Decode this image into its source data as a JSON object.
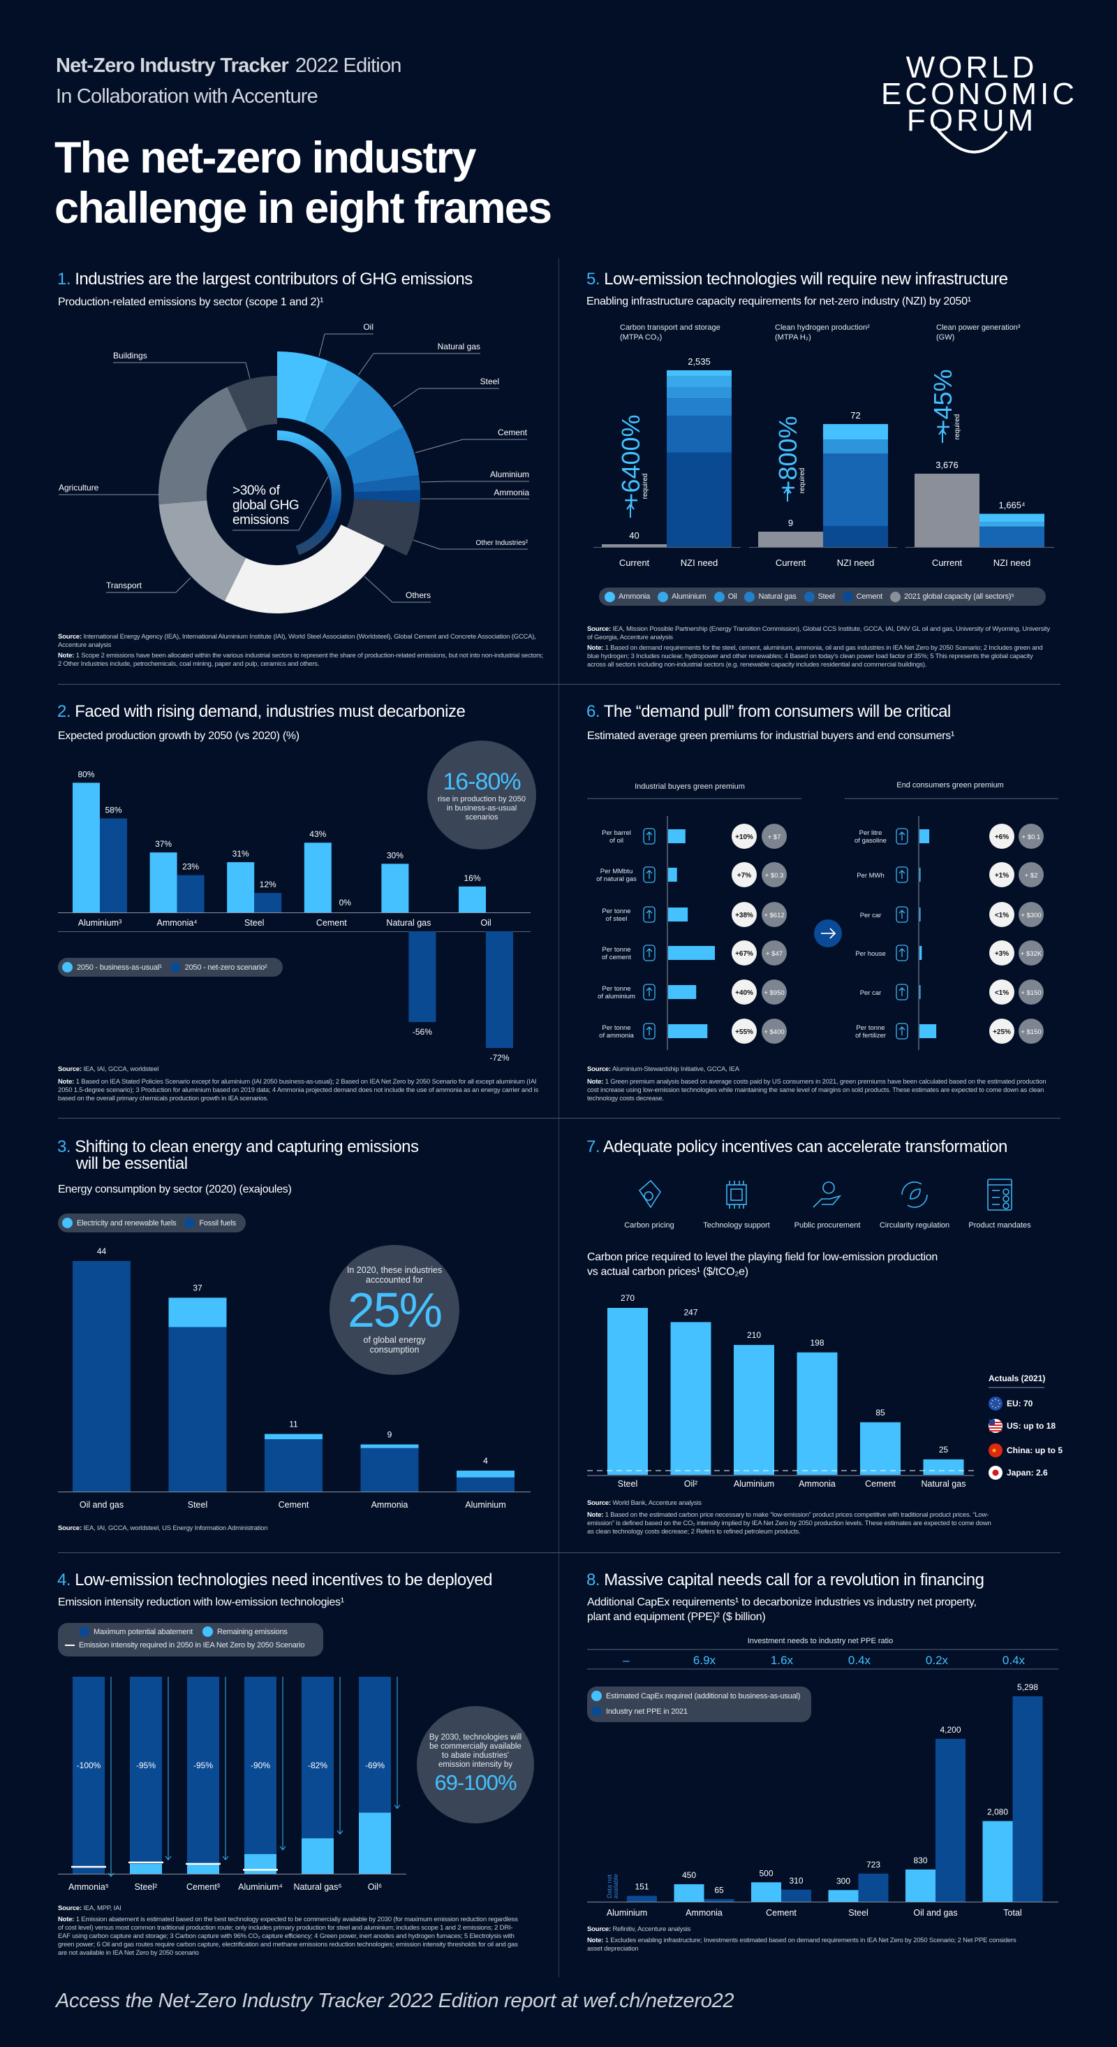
{
  "header": {
    "tracker": "Net-Zero Industry Tracker",
    "edition": "2022 Edition",
    "collab": "In Collaboration with Accenture",
    "title_line1": "The net-zero industry",
    "title_line2": "challenge in eight frames",
    "logo": [
      "WORLD",
      "ECONOMIC",
      "FORUM"
    ]
  },
  "colors": {
    "background": "#020f27",
    "accent": "#3fb6f5",
    "light_blue": "#45c1ff",
    "dark_blue": "#0a4a93",
    "bubble": "#3a4557",
    "current_gray": "#8a8f99"
  },
  "sections": {
    "s1": {
      "num": "1.",
      "title": "Industries are the largest contributors of GHG emissions",
      "subtitle": "Production-related emissions by sector (scope 1 and 2)¹",
      "center_label": [
        ">30% of",
        "global GHG",
        "emissions"
      ],
      "source_label": "Source:",
      "source": "International Energy Agency (IEA), International Aluminium Institute (IAI), World Steel Association (Worldsteel), Global Cement and Concrete Association (GCCA), Accenture analysis",
      "note_label": "Note:",
      "note": "1 Scope 2 emissions have been allocated within the various industrial sectors to represent the share of production-related emissions, but not into non-industrial sectors; 2 Other Industries include, petrochemicals, coal mining, paper and pulp, ceramics and others."
    },
    "s2": {
      "num": "2.",
      "title": "Faced with rising demand, industries must decarbonize",
      "subtitle": "Expected production growth by 2050 (vs 2020) (%)",
      "legend": [
        "2050 - business-as-usual¹",
        "2050 - net-zero scenario²"
      ],
      "bubble_big": "16-80%",
      "bubble_text": "rise in production by 2050 in business-as-usual scenarios",
      "source_label": "Source:",
      "source": "IEA, IAI, GCCA, worldsteel",
      "note_label": "Note:",
      "note": "1 Based on IEA Stated Policies Scenario except for aluminium (IAI 2050 business-as-usual); 2 Based on IEA Net Zero by 2050 Scenario for all except aluminium (IAI 2050 1.5-degree scenario); 3 Production for aluminium based on 2019 data; 4 Ammonia projected demand does not include the use of ammonia as an energy carrier and is based on the overall primary chemicals production growth in IEA scenarios."
    },
    "s3": {
      "num": "3.",
      "title": "Shifting to clean energy and capturing emissions",
      "title2": "will be essential",
      "subtitle": "Energy consumption by sector (2020) (exajoules)",
      "legend": [
        "Electricity and renewable fuels",
        "Fossil fuels"
      ],
      "bubble_top": "In 2020, these industries acccounted for",
      "bubble_big": "25%",
      "bubble_bottom": "of global energy consumption",
      "source_label": "Source:",
      "source": "IEA, IAI, GCCA, worldsteel, US Energy Information Administration"
    },
    "s4": {
      "num": "4.",
      "title": "Low-emission technologies need incentives to be deployed",
      "subtitle": "Emission intensity reduction with low-emission technologies¹",
      "legend": [
        "Maximum potential abatement",
        "Remaining emissions",
        "Emission intensity required in 2050 in IEA Net Zero by 2050 Scenario"
      ],
      "bubble_text": "By 2030, technologies will be commercially available to abate industries' emission intensity by",
      "bubble_big": "69-100%",
      "source_label": "Source:",
      "source": "IEA, MPP, IAI",
      "note_label": "Note:",
      "note": "1 Emission abatement is estimated based on the best technology expected to be commercially available by 2030 (for maximum emission reduction regardless of cost level) versus most common traditional production route; only includes primary production for steel and aluminium; includes scope 1 and 2 emissions; 2 DRI-EAF using carbon capture and storage; 3 Carbon capture with 96% CO₂ capture efficiency; 4 Green power, inert anodes and hydrogen furnaces; 5 Electrolysis with green power; 6 Oil and gas routes require carbon capture, electrification and methane emissions reduction technologies; emission intensity thresholds for oil and gas are not available in IEA Net Zero by 2050 scenario"
    },
    "s5": {
      "num": "5.",
      "title": "Low-emission technologies will require new infrastructure",
      "subtitle": "Enabling infrastructure capacity requirements for net-zero industry (NZI) by 2050¹",
      "legend": [
        "Ammonia",
        "Aluminium",
        "Oil",
        "Natural gas",
        "Steel",
        "Cement",
        "2021 global capacity (all sectors)⁵"
      ],
      "source_label": "Source:",
      "source": "IEA, Mission Possible Partnership (Energy Transition Commission), Global CCS Institute, GCCA, IAI, DNV GL oil and gas, University of Wyoming, University of Georgia, Accenture analysis",
      "note_label": "Note:",
      "note": "1 Based on demand requirements for the steel, cement, aluminium, ammonia, oil and gas industries in IEA Net Zero by 2050 Scenario; 2 Includes green and blue hydrogen; 3 Includes nuclear, hydropower and other renewables; 4 Based on today's clean power load factor of 35%; 5 This represents the global capacity across all sectors including non-industrial sectors (e.g. renewable capacity includes residential and commercial buildings)."
    },
    "s6": {
      "num": "6.",
      "title": "The “demand pull” from consumers will be critical",
      "subtitle": "Estimated average green premiums for industrial buyers and end consumers¹",
      "source_label": "Source:",
      "source": "Aluminium-Stewardship Initiative, GCCA, IEA",
      "note_label": "Note:",
      "note": "1 Green premium analysis based on average costs paid by US consumers in 2021, green premiums have been calculated based on the estimated production cost increase using low-emission technologies while maintaining the same level of margins on sold products. These estimates are expected to come down as clean technology costs decrease."
    },
    "s7": {
      "num": "7.",
      "title": "Adequate policy incentives can accelerate transformation",
      "policies": [
        "Carbon pricing",
        "Technology support",
        "Public procurement",
        "Circularity regulation",
        "Product mandates"
      ],
      "subtitle": "Carbon price required to level the playing field for low-emission production",
      "subtitle2": "vs actual carbon prices¹ ($/tCO₂e)",
      "actuals_title": "Actuals (2021)",
      "actuals": [
        "EU: 70",
        "US: up to 18",
        "China: up to 5",
        "Japan: 2.6"
      ],
      "source_label": "Source:",
      "source": "World Bank, Accenture analysis",
      "note_label": "Note:",
      "note": "1 Based on the estimated carbon price necessary to make “low-emission” product prices competitive with traditional product prices. “Low-emission” is defined based on the CO₂ intensity implied by IEA Net Zero by 2050 production levels. These estimates are expected to come down as clean technology costs decrease; 2 Refers to refined petroleum products."
    },
    "s8": {
      "num": "8.",
      "title": "Massive capital needs call for a revolution in financing",
      "subtitle": "Additional CapEx requirements¹ to decarbonize industries vs industry net property,",
      "subtitle2": "plant and equipment (PPE)² ($ billion)",
      "ratio_header": "Investment needs to industry net PPE ratio",
      "ratios": [
        "–",
        "6.9x",
        "1.6x",
        "0.4x",
        "0.2x",
        "0.4x"
      ],
      "legend": [
        "Estimated CapEx required (additional to business-as-usual)",
        "Industry net PPE in 2021"
      ],
      "not_available": [
        "Data not",
        "available"
      ],
      "source_label": "Source:",
      "source": "Refinitiv, Accenture analysis",
      "note_label": "Note:",
      "note": "1 Excludes enabling infrastructure; Investments estimated based on demand requirements in IEA Net Zero by 2050 Scenario; 2 Net PPE considers asset depreciation"
    }
  },
  "chart_data": [
    {
      "type": "pie",
      "title": "Production-related emissions by sector (scope 1 and 2)¹",
      "unit": "share of global GHG emissions (%), estimated from arc angles",
      "slices": [
        {
          "label": "Oil",
          "value": 5.8,
          "industrial": true,
          "color": "#45c1ff"
        },
        {
          "label": "Natural gas",
          "value": 4.2,
          "industrial": true,
          "color": "#36a9ea"
        },
        {
          "label": "Steel",
          "value": 7.2,
          "industrial": true,
          "color": "#2a90d8"
        },
        {
          "label": "Cement",
          "value": 5.6,
          "industrial": true,
          "color": "#1f7ac6"
        },
        {
          "label": "Aluminium",
          "value": 1.7,
          "industrial": true,
          "color": "#1563ae"
        },
        {
          "label": "Ammonia",
          "value": 1.4,
          "industrial": true,
          "color": "#0a4a93"
        },
        {
          "label": "Other Industries²",
          "value": 6.1,
          "industrial": true,
          "color": "#333f51"
        },
        {
          "label": "Others",
          "value": 25.3,
          "industrial": false,
          "color": "#f2f2f2"
        },
        {
          "label": "Transport",
          "value": 16.4,
          "industrial": false,
          "color": "#9aa2ac"
        },
        {
          "label": "Agriculture",
          "value": 19.4,
          "industrial": false,
          "color": "#6a7684"
        },
        {
          "label": "Buildings",
          "value": 6.9,
          "industrial": false,
          "color": "#3a4656"
        }
      ]
    },
    {
      "type": "bar",
      "title": "Expected production growth by 2050 (vs 2020) (%)",
      "categories": [
        "Aluminium³",
        "Ammonia⁴",
        "Steel",
        "Cement",
        "Natural gas",
        "Oil"
      ],
      "series": [
        {
          "name": "2050 - business-as-usual¹",
          "values": [
            80,
            37,
            31,
            43,
            30,
            16
          ],
          "labels": [
            "80%",
            "37%",
            "31%",
            "43%",
            "30%",
            "16%"
          ],
          "color": "#45c1ff"
        },
        {
          "name": "2050 - net-zero scenario²",
          "values": [
            58,
            23,
            12,
            0,
            -56,
            -72
          ],
          "labels": [
            "58%",
            "23%",
            "12%",
            "0%",
            "-56%",
            "-72%"
          ],
          "color": "#0a4a93"
        }
      ],
      "legend": "bottom-left"
    },
    {
      "type": "bar",
      "stacked": true,
      "title": "Energy consumption by sector (2020) (exajoules)",
      "categories": [
        "Oil and gas",
        "Steel",
        "Cement",
        "Ammonia",
        "Aluminium"
      ],
      "totals": [
        44,
        37,
        11,
        9,
        4
      ],
      "total_labels": [
        "44",
        "37",
        "11",
        "9",
        "4"
      ],
      "series": [
        {
          "name": "Fossil fuels",
          "values": [
            44,
            31.4,
            10,
            8.3,
            2.7
          ],
          "color": "#0a4a93"
        },
        {
          "name": "Electricity and renewable fuels",
          "values": [
            0,
            5.6,
            1,
            0.7,
            1.3
          ],
          "color": "#45c1ff"
        }
      ],
      "legend": "top-left"
    },
    {
      "type": "bar",
      "stacked": true,
      "title": "Emission intensity reduction with low-emission technologies¹",
      "categories": [
        "Ammonia⁵",
        "Steel²",
        "Cement³",
        "Aluminium⁴",
        "Natural gas⁶",
        "Oil⁶"
      ],
      "reduction_labels": [
        "-100%",
        "-95%",
        "-95%",
        "-90%",
        "-82%",
        "-69%"
      ],
      "max_potential_abatement": [
        100,
        95,
        95,
        90,
        82,
        69
      ],
      "remaining_emissions": [
        0,
        5,
        5,
        10,
        18,
        31
      ],
      "required_2050_intensity": [
        3.5,
        5.7,
        5,
        2,
        null,
        null
      ],
      "legend": "top-left"
    },
    {
      "type": "bar",
      "stacked": true,
      "title": "Enabling infrastructure capacity requirements for net-zero industry (NZI) by 2050¹",
      "groups": [
        {
          "header": "Carbon transport and storage",
          "unit": "(MTPA CO₂)",
          "growth": "+6400%",
          "required": "required",
          "current": 40,
          "current_label": "40",
          "nzi": 2535,
          "nzi_label": "2,535",
          "segments": {
            "Ammonia": 84,
            "Aluminium": 161,
            "Oil": 157,
            "Natural gas": 250,
            "Steel": 526,
            "Cement": 1357
          }
        },
        {
          "header": "Clean hydrogen production²",
          "unit": "(MTPA H₂)",
          "growth": "+800%",
          "required": "required",
          "current": 9,
          "current_label": "9",
          "nzi": 72,
          "nzi_label": "72",
          "segments": {
            "Ammonia": 9.1,
            "Aluminium": 0,
            "Oil": 8.2,
            "Natural gas": 0,
            "Steel": 42.4,
            "Cement": 12.3
          }
        },
        {
          "header": "Clean power generation³",
          "unit": "(GW)",
          "growth": "+45%",
          "required": "required",
          "current": 3676,
          "current_label": "3,676",
          "nzi": 1665,
          "nzi_label": "1,665⁴",
          "segments": {
            "Ammonia": 410,
            "Aluminium": 230,
            "Oil": 0,
            "Natural gas": 0,
            "Steel": 1025,
            "Cement": 0
          }
        }
      ],
      "x_labels": [
        "Current",
        "NZI need"
      ],
      "segment_colors": {
        "Ammonia": "#45c1ff",
        "Aluminium": "#38a8ea",
        "Oil": "#2d95dc",
        "Natural gas": "#2380cc",
        "Steel": "#1766b4",
        "Cement": "#0a4a93"
      },
      "legend": "bottom"
    },
    {
      "type": "table",
      "title": "Estimated average green premiums for industrial buyers and end consumers¹",
      "columns": [
        "Industrial buyers green premium",
        "End consumers green premium"
      ],
      "industrial": [
        {
          "label": [
            "Per barrel",
            "of oil"
          ],
          "icon": "barrel-icon",
          "level": 0.37,
          "pct": "+10%",
          "usd": "+ $7"
        },
        {
          "label": [
            "Per MMbtu",
            "of natural gas"
          ],
          "icon": "gas-bottle-icon",
          "level": 0.19,
          "pct": "+7%",
          "usd": "+ $0.3"
        },
        {
          "label": [
            "Per tonne",
            "of steel"
          ],
          "icon": "steel-beam-icon",
          "level": 0.42,
          "pct": "+38%",
          "usd": "+ $612"
        },
        {
          "label": [
            "Per tonne",
            "of cement"
          ],
          "icon": "cement-mixer-icon",
          "level": 1.0,
          "pct": "+67%",
          "usd": "+ $47"
        },
        {
          "label": [
            "Per tonne",
            "of aluminium"
          ],
          "icon": "aluminium-can-icon",
          "level": 0.6,
          "pct": "+40%",
          "usd": "+ $950"
        },
        {
          "label": [
            "Per tonne",
            "of ammonia"
          ],
          "icon": "ammonia-flask-icon",
          "level": 0.84,
          "pct": "+55%",
          "usd": "+ $400"
        }
      ],
      "consumer": [
        {
          "label": [
            "Per litre",
            "of gasoline"
          ],
          "icon": "fuel-can-icon",
          "level": 0.21,
          "pct": "+6%",
          "usd": "+ $0.1"
        },
        {
          "label": [
            "Per MWh"
          ],
          "icon": "electricity-icon",
          "level": 0.02,
          "pct": "+1%",
          "usd": "+ $2"
        },
        {
          "label": [
            "Per car"
          ],
          "icon": "car-icon",
          "level": 0.02,
          "pct": "<1%",
          "usd": "+ $300"
        },
        {
          "label": [
            "Per house"
          ],
          "icon": "house-icon",
          "level": 0.05,
          "pct": "+3%",
          "usd": "+ $32K"
        },
        {
          "label": [
            "Per car"
          ],
          "icon": "car-icon",
          "level": 0.02,
          "pct": "<1%",
          "usd": "+ $150"
        },
        {
          "label": [
            "Per tonne",
            "of fertilizer"
          ],
          "icon": "fertilizer-bag-icon",
          "level": 0.36,
          "pct": "+25%",
          "usd": "+ $150"
        }
      ]
    },
    {
      "type": "bar",
      "title": "Carbon price required to level the playing field for low-emission production vs actual carbon prices¹ ($/tCO₂e)",
      "categories": [
        "Steel",
        "Oil²",
        "Aluminium",
        "Ammonia",
        "Cement",
        "Natural gas"
      ],
      "values": [
        270,
        247,
        210,
        198,
        85,
        25
      ],
      "labels": [
        "270",
        "247",
        "210",
        "198",
        "85",
        "25"
      ],
      "actuals_2021": {
        "EU": 70,
        "US": 18,
        "China": 5,
        "Japan": 2.6
      },
      "color": "#45c1ff"
    },
    {
      "type": "bar",
      "title": "Additional CapEx requirements¹ to decarbonize industries vs industry net property, plant and equipment (PPE)² ($ billion)",
      "categories": [
        "Aluminium",
        "Ammonia",
        "Cement",
        "Steel",
        "Oil and gas",
        "Total"
      ],
      "series": [
        {
          "name": "Estimated CapEx required (additional to business-as-usual)",
          "values": [
            null,
            450,
            500,
            300,
            830,
            2080
          ],
          "labels": [
            "",
            "450",
            "500",
            "300",
            "830",
            "2,080"
          ],
          "color": "#45c1ff"
        },
        {
          "name": "Industry net PPE in 2021",
          "values": [
            151,
            65,
            310,
            723,
            4200,
            5298
          ],
          "labels": [
            "151",
            "65",
            "310",
            "723",
            "4,200",
            "5,298"
          ],
          "color": "#0a4a93"
        }
      ],
      "legend": "top-left"
    }
  ],
  "footer": "Access the Net-Zero Industry Tracker 2022 Edition report at wef.ch/netzero22"
}
